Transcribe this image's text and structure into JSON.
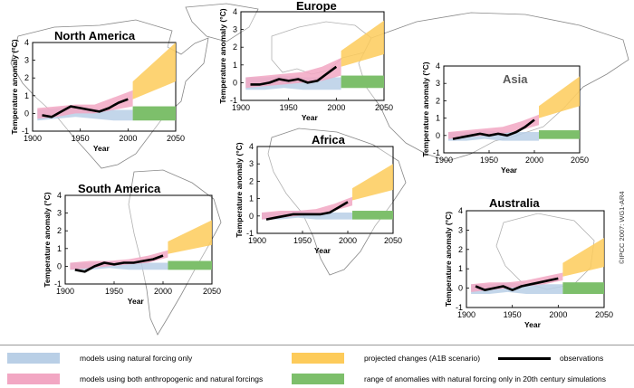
{
  "copyright": "©IPCC 2007: WG1-AR4",
  "colors": {
    "natural": "#b9cfe6",
    "both": "#f2a7c3",
    "projected": "#fdcb5a",
    "range": "#7dbf6b",
    "observations": "#000000",
    "map": "#888888"
  },
  "legend": {
    "natural": "models using natural forcing only",
    "both": "models using both anthropogenic and natural forcings",
    "projected": "projected changes (A1B scenario)",
    "observations": "observations",
    "range": "range of anomalies with natural forcing only in 20th century simulations"
  },
  "chart_data": [
    {
      "type": "line",
      "title": "North America",
      "xlabel": "Year",
      "ylabel": "Temperature anomaly (°C)",
      "xlim": [
        1900,
        2050
      ],
      "ylim": [
        -1,
        4
      ],
      "xticks": [
        1900,
        1950,
        2000,
        2050
      ],
      "yticks": [
        -1,
        0,
        1,
        2,
        3,
        4
      ],
      "observations": {
        "x": [
          1910,
          1920,
          1930,
          1940,
          1950,
          1960,
          1970,
          1980,
          1990,
          2000
        ],
        "y": [
          -0.1,
          -0.2,
          0.1,
          0.4,
          0.3,
          0.2,
          0.1,
          0.3,
          0.6,
          0.8
        ]
      },
      "natural_band": {
        "x": [
          1905,
          1925,
          1945,
          1965,
          1985,
          2005
        ],
        "lo": [
          -0.4,
          -0.3,
          -0.2,
          -0.3,
          -0.4,
          -0.4
        ],
        "hi": [
          0.2,
          0.3,
          0.4,
          0.3,
          0.2,
          0.2
        ]
      },
      "both_band": {
        "x": [
          1905,
          1925,
          1945,
          1965,
          1985,
          2005
        ],
        "lo": [
          -0.3,
          -0.2,
          0.0,
          0.0,
          0.2,
          0.4
        ],
        "hi": [
          0.3,
          0.4,
          0.5,
          0.5,
          0.9,
          1.3
        ]
      },
      "projected_band": {
        "x": [
          2005,
          2050
        ],
        "lo": [
          0.8,
          1.8
        ],
        "hi": [
          1.8,
          4.0
        ]
      },
      "range_bar": [
        2005,
        2050,
        -0.4,
        0.4
      ]
    },
    {
      "type": "line",
      "title": "Europe",
      "xlabel": "Year",
      "ylabel": "Temperature anomaly (°C)",
      "xlim": [
        1900,
        2050
      ],
      "ylim": [
        -1,
        4
      ],
      "xticks": [
        1900,
        1950,
        2000,
        2050
      ],
      "yticks": [
        -1,
        0,
        1,
        2,
        3,
        4
      ],
      "observations": {
        "x": [
          1910,
          1920,
          1930,
          1940,
          1950,
          1960,
          1970,
          1980,
          1990,
          2000
        ],
        "y": [
          -0.1,
          -0.1,
          0.0,
          0.2,
          0.1,
          0.2,
          0.0,
          0.1,
          0.5,
          0.9
        ]
      },
      "natural_band": {
        "x": [
          1905,
          1925,
          1945,
          1965,
          1985,
          2005
        ],
        "lo": [
          -0.4,
          -0.4,
          -0.3,
          -0.4,
          -0.4,
          -0.4
        ],
        "hi": [
          0.3,
          0.3,
          0.4,
          0.3,
          0.3,
          0.3
        ]
      },
      "both_band": {
        "x": [
          1905,
          1925,
          1945,
          1965,
          1985,
          2005
        ],
        "lo": [
          -0.3,
          -0.2,
          -0.1,
          0.0,
          0.1,
          0.4
        ],
        "hi": [
          0.3,
          0.4,
          0.5,
          0.6,
          0.9,
          1.4
        ]
      },
      "projected_band": {
        "x": [
          2005,
          2050
        ],
        "lo": [
          0.9,
          1.6
        ],
        "hi": [
          1.8,
          3.5
        ]
      },
      "range_bar": [
        2005,
        2050,
        -0.3,
        0.4
      ]
    },
    {
      "type": "line",
      "title": "Asia",
      "xlabel": "Year",
      "ylabel": "Temperature anomaly (°C)",
      "xlim": [
        1900,
        2050
      ],
      "ylim": [
        -1,
        4
      ],
      "xticks": [
        1900,
        1950,
        2000,
        2050
      ],
      "yticks": [
        -1,
        0,
        1,
        2,
        3,
        4
      ],
      "observations": {
        "x": [
          1910,
          1920,
          1930,
          1940,
          1950,
          1960,
          1970,
          1980,
          1990,
          2000
        ],
        "y": [
          -0.2,
          -0.1,
          0.0,
          0.1,
          0.0,
          0.1,
          0.0,
          0.2,
          0.5,
          0.9
        ]
      },
      "natural_band": {
        "x": [
          1905,
          1925,
          1945,
          1965,
          1985,
          2005
        ],
        "lo": [
          -0.3,
          -0.3,
          -0.2,
          -0.3,
          -0.3,
          -0.3
        ],
        "hi": [
          0.2,
          0.2,
          0.3,
          0.2,
          0.2,
          0.2
        ]
      },
      "both_band": {
        "x": [
          1905,
          1925,
          1945,
          1965,
          1985,
          2005
        ],
        "lo": [
          -0.2,
          -0.1,
          0.0,
          0.1,
          0.3,
          0.6
        ],
        "hi": [
          0.2,
          0.3,
          0.4,
          0.5,
          0.8,
          1.2
        ]
      },
      "projected_band": {
        "x": [
          2005,
          2050
        ],
        "lo": [
          1.0,
          1.7
        ],
        "hi": [
          1.7,
          3.4
        ]
      },
      "range_bar": [
        2005,
        2050,
        -0.2,
        0.3
      ]
    },
    {
      "type": "line",
      "title": "Africa",
      "xlabel": "Year",
      "ylabel": "Temperature anomaly (°C)",
      "xlim": [
        1900,
        2050
      ],
      "ylim": [
        -1,
        4
      ],
      "xticks": [
        1900,
        1950,
        2000,
        2050
      ],
      "yticks": [
        -1,
        0,
        1,
        2,
        3,
        4
      ],
      "observations": {
        "x": [
          1910,
          1920,
          1930,
          1940,
          1950,
          1960,
          1970,
          1980,
          1990,
          2000
        ],
        "y": [
          -0.2,
          -0.1,
          0.0,
          0.1,
          0.1,
          0.1,
          0.1,
          0.2,
          0.5,
          0.8
        ]
      },
      "natural_band": {
        "x": [
          1905,
          1925,
          1945,
          1965,
          1985,
          2005
        ],
        "lo": [
          -0.2,
          -0.2,
          -0.1,
          -0.2,
          -0.2,
          -0.2
        ],
        "hi": [
          0.2,
          0.2,
          0.3,
          0.2,
          0.2,
          0.2
        ]
      },
      "both_band": {
        "x": [
          1905,
          1925,
          1945,
          1965,
          1985,
          2005
        ],
        "lo": [
          -0.2,
          -0.1,
          0.0,
          0.1,
          0.3,
          0.6
        ],
        "hi": [
          0.2,
          0.3,
          0.3,
          0.4,
          0.7,
          1.1
        ]
      },
      "projected_band": {
        "x": [
          2005,
          2050
        ],
        "lo": [
          0.9,
          1.5
        ],
        "hi": [
          1.6,
          3.0
        ]
      },
      "range_bar": [
        2005,
        2050,
        -0.2,
        0.3
      ]
    },
    {
      "type": "line",
      "title": "South America",
      "xlabel": "Year",
      "ylabel": "Temperature anomaly (°C)",
      "xlim": [
        1900,
        2050
      ],
      "ylim": [
        -1,
        4
      ],
      "xticks": [
        1900,
        1950,
        2000,
        2050
      ],
      "yticks": [
        -1,
        0,
        1,
        2,
        3,
        4
      ],
      "observations": {
        "x": [
          1910,
          1920,
          1930,
          1940,
          1950,
          1960,
          1970,
          1980,
          1990,
          2000
        ],
        "y": [
          -0.2,
          -0.3,
          0.0,
          0.2,
          0.1,
          0.2,
          0.2,
          0.3,
          0.4,
          0.6
        ]
      },
      "natural_band": {
        "x": [
          1905,
          1925,
          1945,
          1965,
          1985,
          2005
        ],
        "lo": [
          -0.2,
          -0.2,
          -0.1,
          -0.2,
          -0.2,
          -0.2
        ],
        "hi": [
          0.2,
          0.2,
          0.3,
          0.2,
          0.2,
          0.2
        ]
      },
      "both_band": {
        "x": [
          1905,
          1925,
          1945,
          1965,
          1985,
          2005
        ],
        "lo": [
          -0.2,
          -0.1,
          0.0,
          0.1,
          0.2,
          0.5
        ],
        "hi": [
          0.2,
          0.3,
          0.3,
          0.4,
          0.6,
          0.9
        ]
      },
      "projected_band": {
        "x": [
          2005,
          2050
        ],
        "lo": [
          0.7,
          1.2
        ],
        "hi": [
          1.4,
          2.6
        ]
      },
      "range_bar": [
        2005,
        2050,
        -0.2,
        0.3
      ]
    },
    {
      "type": "line",
      "title": "Australia",
      "xlabel": "Year",
      "ylabel": "Temperature anomaly (°C)",
      "xlim": [
        1900,
        2050
      ],
      "ylim": [
        -1,
        4
      ],
      "xticks": [
        1900,
        1950,
        2000,
        2050
      ],
      "yticks": [
        -1,
        0,
        1,
        2,
        3,
        4
      ],
      "observations": {
        "x": [
          1910,
          1920,
          1930,
          1940,
          1950,
          1960,
          1970,
          1980,
          1990,
          2000
        ],
        "y": [
          0.1,
          -0.1,
          0.0,
          0.1,
          -0.1,
          0.1,
          0.2,
          0.3,
          0.4,
          0.5
        ]
      },
      "natural_band": {
        "x": [
          1905,
          1925,
          1945,
          1965,
          1985,
          2005
        ],
        "lo": [
          -0.3,
          -0.3,
          -0.2,
          -0.3,
          -0.3,
          -0.3
        ],
        "hi": [
          0.2,
          0.2,
          0.3,
          0.2,
          0.2,
          0.2
        ]
      },
      "both_band": {
        "x": [
          1905,
          1925,
          1945,
          1965,
          1985,
          2005
        ],
        "lo": [
          -0.2,
          -0.1,
          0.0,
          0.1,
          0.2,
          0.4
        ],
        "hi": [
          0.2,
          0.3,
          0.3,
          0.4,
          0.6,
          0.8
        ]
      },
      "projected_band": {
        "x": [
          2005,
          2050
        ],
        "lo": [
          0.6,
          1.1
        ],
        "hi": [
          1.3,
          2.6
        ]
      },
      "range_bar": [
        2005,
        2050,
        -0.3,
        0.3
      ]
    }
  ]
}
